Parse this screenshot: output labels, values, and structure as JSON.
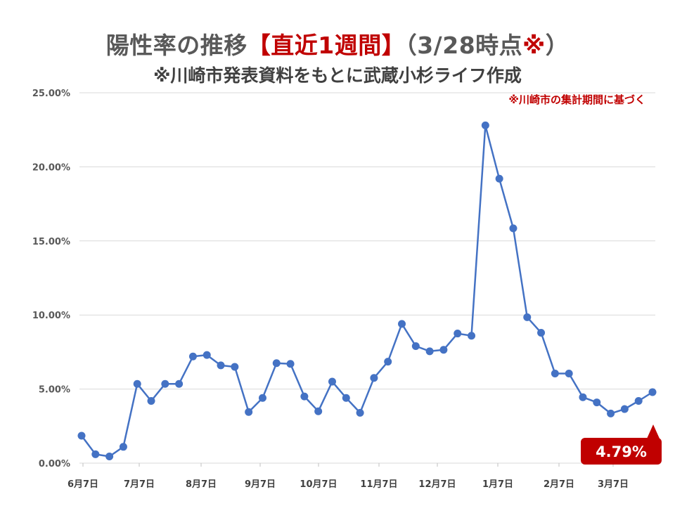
{
  "title": {
    "prefix": "陽性率の推移",
    "accent": "【直近1週間】",
    "suffix": "（3/28時点",
    "mark": "※",
    "close": "）"
  },
  "subtitle": "※川崎市発表資料をもとに武蔵小杉ライフ作成",
  "colors": {
    "line": "#4472c4",
    "accent": "#c00000",
    "grid": "#d9d9d9"
  },
  "chart_data": {
    "type": "line",
    "note": "※川崎市の集計期間に基づく",
    "callout": "4.79%",
    "ylim": [
      0,
      25
    ],
    "y_ticks": [
      "0.00%",
      "5.00%",
      "10.00%",
      "15.00%",
      "20.00%",
      "25.00%"
    ],
    "x_ticks": [
      "6月7日",
      "7月7日",
      "8月7日",
      "9月7日",
      "10月7日",
      "11月7日",
      "12月7日",
      "1月7日",
      "2月7日",
      "3月7日"
    ],
    "series": [
      {
        "values": [
          1.85,
          0.6,
          0.45,
          1.1,
          5.35,
          4.2,
          5.35,
          5.35,
          7.2,
          7.3,
          6.6,
          6.5,
          3.45,
          4.4,
          6.75,
          6.7,
          4.5,
          3.5,
          5.5,
          4.4,
          3.4,
          5.75,
          6.85,
          9.4,
          7.9,
          7.55,
          7.65,
          8.75,
          8.6,
          22.8,
          19.2,
          15.85,
          9.85,
          8.8,
          6.05,
          6.05,
          4.45,
          4.1,
          3.35,
          3.65,
          4.2,
          4.79
        ]
      }
    ]
  }
}
